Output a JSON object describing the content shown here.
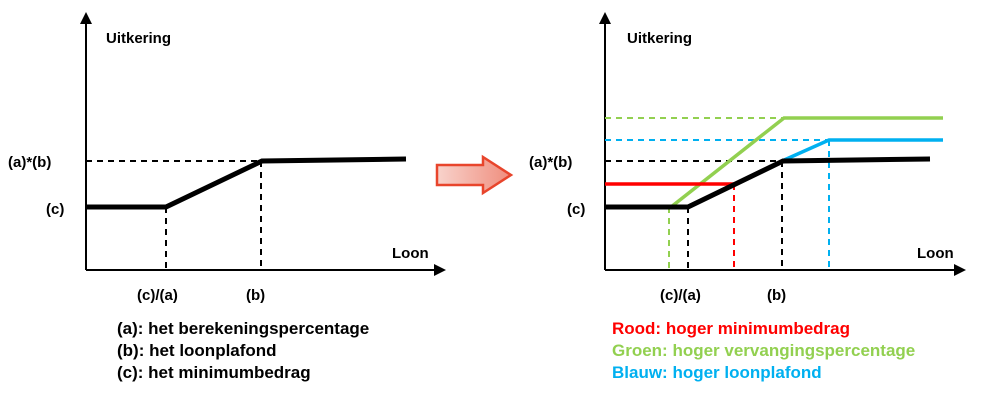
{
  "left": {
    "y_axis_label": "Uitkering",
    "x_axis_label": "Loon",
    "y_tick_top": "(a)*(b)",
    "y_tick_bottom": "(c)",
    "x_tick_left": "(c)/(a)",
    "x_tick_right": "(b)",
    "legend": [
      "(a): het berekeningspercentage",
      "(b): het loonplafond",
      "(c): het minimumbedrag"
    ]
  },
  "right": {
    "y_axis_label": "Uitkering",
    "x_axis_label": "Loon",
    "y_tick_top": "(a)*(b)",
    "y_tick_bottom": "(c)",
    "x_tick_left": "(c)/(a)",
    "x_tick_right": "(b)",
    "legend": [
      {
        "text": "Rood: hoger minimumbedrag",
        "color": "#ff0000"
      },
      {
        "text": "Groen: hoger vervangingspercentage",
        "color": "#92d050"
      },
      {
        "text": "Blauw: hoger loonplafond",
        "color": "#00b0f0"
      }
    ]
  },
  "colors": {
    "base": "#000000",
    "red": "#ff0000",
    "green": "#92d050",
    "blue": "#00b0f0",
    "arrow_fill": "#f4b6ac",
    "arrow_stroke": "#e8452c"
  }
}
